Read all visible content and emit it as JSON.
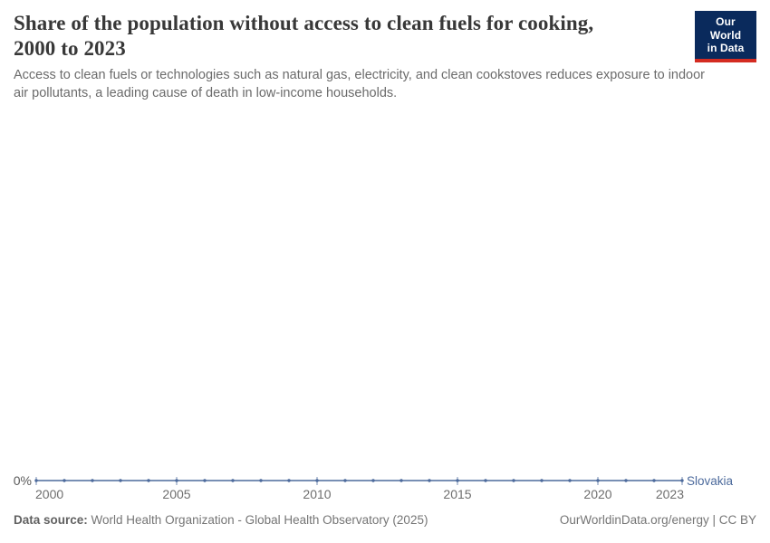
{
  "header": {
    "title_line1": "Share of the population without access to clean fuels for cooking,",
    "title_line2": "2000 to 2023"
  },
  "logo": {
    "line1": "Our World",
    "line2": "in Data",
    "bg_color": "#0a2a5c",
    "stripe_color": "#d42b21"
  },
  "subtitle": "Access to clean fuels or technologies such as natural gas, electricity, and clean cookstoves reduces exposure to indoor air pollutants, a leading cause of death in low-income households.",
  "chart_data": {
    "type": "line",
    "title": "Share of the population without access to clean fuels for cooking, 2000 to 2023",
    "xlabel": "",
    "ylabel": "",
    "unit": "%",
    "x_range": [
      2000,
      2023
    ],
    "x_ticks": [
      2000,
      2005,
      2010,
      2015,
      2020,
      2023
    ],
    "y_tick_label": "0%",
    "grid": false,
    "legend_position": "end-of-line",
    "series": [
      {
        "name": "Slovakia",
        "color": "#4c6a9c",
        "x": [
          2000,
          2001,
          2002,
          2003,
          2004,
          2005,
          2006,
          2007,
          2008,
          2009,
          2010,
          2011,
          2012,
          2013,
          2014,
          2015,
          2016,
          2017,
          2018,
          2019,
          2020,
          2021,
          2022,
          2023
        ],
        "values": [
          0,
          0,
          0,
          0,
          0,
          0,
          0,
          0,
          0,
          0,
          0,
          0,
          0,
          0,
          0,
          0,
          0,
          0,
          0,
          0,
          0,
          0,
          0,
          0
        ]
      }
    ]
  },
  "footer": {
    "source_label": "Data source:",
    "source_text": " World Health Organization - Global Health Observatory (2025)",
    "right_text": "OurWorldinData.org/energy | CC BY"
  }
}
